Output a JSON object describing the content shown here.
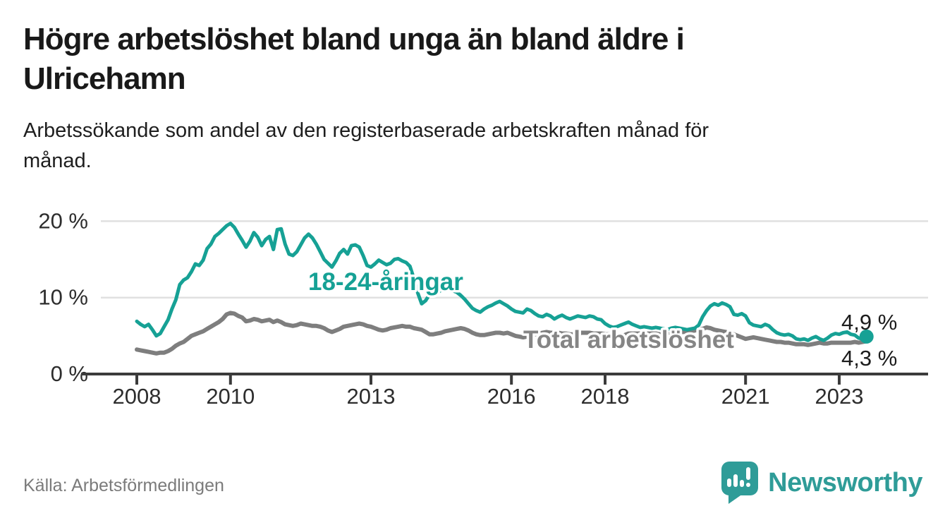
{
  "header": {
    "title": "Högre arbetslöshet bland unga än bland äldre i\nUlricehamn",
    "subtitle": "Arbetssökande som andel av den registerbaserade arbetskraften månad för\nmånad."
  },
  "footer": {
    "source": "Källa: Arbetsförmedlingen",
    "brand": "Newsworthy",
    "logo_icon": "speech-bubble-bar-chart"
  },
  "colors": {
    "youth_line": "#16a195",
    "total_line": "#7e7e7e",
    "total_label": "#858585",
    "grid": "#e0e0e0",
    "axis": "#3b3b3b",
    "tick_text": "#2d2d2d",
    "value_text": "#1c1c1c",
    "logo": "#2f9c98"
  },
  "chart_data": {
    "type": "line",
    "unit": "%",
    "grid": true,
    "ylim": [
      0,
      21
    ],
    "y_ticks": [
      0,
      10,
      20
    ],
    "y_tick_labels": [
      "0 %",
      "10 %",
      "20 %"
    ],
    "x_tick_years": [
      2008,
      2010,
      2013,
      2016,
      2018,
      2021,
      2023
    ],
    "x_tick_labels": [
      "2008",
      "2010",
      "2013",
      "2016",
      "2018",
      "2021",
      "2023"
    ],
    "x_start_year": 2008,
    "x_start_month": 1,
    "x_end_year": 2023,
    "x_end_month": 8,
    "series": [
      {
        "name": "18-24-åringar",
        "end_label": "4,9 %",
        "end_value": 4.9,
        "values": [
          6.9,
          6.5,
          6.2,
          6.5,
          5.8,
          5.0,
          5.3,
          6.2,
          7.1,
          8.5,
          9.7,
          11.7,
          12.3,
          12.6,
          13.4,
          14.4,
          14.2,
          14.9,
          16.4,
          17.0,
          18.0,
          18.4,
          18.9,
          19.4,
          19.7,
          19.2,
          18.3,
          17.5,
          16.6,
          17.4,
          18.5,
          17.9,
          16.8,
          17.6,
          18.0,
          16.3,
          18.9,
          19.0,
          17.0,
          15.7,
          15.5,
          16.0,
          16.9,
          17.8,
          18.3,
          17.8,
          17.0,
          16.0,
          15.0,
          14.5,
          14.0,
          14.8,
          15.8,
          16.3,
          15.7,
          16.8,
          16.9,
          16.6,
          15.5,
          14.2,
          14.0,
          14.4,
          14.9,
          14.6,
          14.3,
          14.5,
          15.0,
          15.1,
          14.8,
          14.6,
          14.1,
          12.5,
          10.6,
          9.2,
          9.6,
          10.4,
          10.7,
          10.6,
          11.0,
          11.1,
          11.2,
          10.9,
          10.7,
          10.3,
          9.8,
          9.2,
          8.6,
          8.3,
          8.1,
          8.5,
          8.8,
          9.0,
          9.3,
          9.5,
          9.2,
          8.9,
          8.5,
          8.2,
          8.1,
          8.0,
          8.5,
          8.3,
          7.9,
          7.6,
          7.5,
          7.8,
          7.6,
          7.2,
          7.5,
          7.7,
          7.4,
          7.2,
          7.4,
          7.6,
          7.5,
          7.4,
          7.6,
          7.5,
          7.2,
          7.1,
          6.6,
          6.3,
          6.1,
          6.2,
          6.4,
          6.6,
          6.8,
          6.5,
          6.3,
          6.1,
          6.2,
          6.1,
          6.0,
          6.1,
          6.0,
          5.9,
          5.8,
          6.0,
          6.1,
          6.0,
          5.9,
          5.8,
          5.9,
          6.0,
          6.4,
          7.5,
          8.3,
          8.9,
          9.2,
          9.0,
          9.3,
          9.1,
          8.8,
          7.8,
          7.7,
          7.9,
          7.6,
          6.7,
          6.4,
          6.3,
          6.2,
          6.5,
          6.3,
          5.8,
          5.4,
          5.2,
          5.1,
          5.2,
          5.0,
          4.6,
          4.5,
          4.6,
          4.4,
          4.7,
          4.9,
          4.6,
          4.4,
          4.7,
          5.1,
          5.3,
          5.2,
          5.4,
          5.5,
          5.2,
          5.1,
          4.7,
          4.6,
          4.9
        ]
      },
      {
        "name": "Total arbetslöshet",
        "end_label": "4,3 %",
        "end_value": 4.3,
        "values": [
          3.2,
          3.1,
          3.0,
          2.9,
          2.8,
          2.7,
          2.8,
          2.8,
          3.0,
          3.3,
          3.7,
          4.0,
          4.2,
          4.6,
          5.0,
          5.2,
          5.4,
          5.6,
          5.9,
          6.2,
          6.5,
          6.8,
          7.2,
          7.8,
          8.0,
          7.9,
          7.6,
          7.4,
          6.9,
          7.0,
          7.2,
          7.1,
          6.9,
          7.0,
          7.1,
          6.8,
          7.0,
          6.8,
          6.5,
          6.4,
          6.3,
          6.4,
          6.6,
          6.5,
          6.4,
          6.3,
          6.3,
          6.2,
          6.0,
          5.7,
          5.5,
          5.7,
          5.9,
          6.2,
          6.3,
          6.4,
          6.5,
          6.6,
          6.5,
          6.3,
          6.2,
          6.0,
          5.8,
          5.7,
          5.8,
          6.0,
          6.1,
          6.2,
          6.3,
          6.2,
          6.2,
          6.0,
          5.9,
          5.8,
          5.5,
          5.2,
          5.2,
          5.3,
          5.4,
          5.6,
          5.7,
          5.8,
          5.9,
          6.0,
          5.9,
          5.7,
          5.4,
          5.2,
          5.1,
          5.1,
          5.2,
          5.3,
          5.4,
          5.4,
          5.3,
          5.4,
          5.2,
          5.0,
          4.9,
          4.8,
          4.9,
          5.0,
          5.2,
          5.3,
          5.4,
          5.5,
          5.4,
          5.4,
          5.4,
          5.3,
          5.3,
          5.2,
          5.2,
          5.3,
          5.4,
          5.4,
          5.4,
          5.3,
          5.3,
          5.3,
          5.2,
          5.2,
          5.1,
          5.0,
          5.0,
          5.1,
          5.3,
          5.3,
          5.3,
          5.3,
          5.3,
          5.3,
          5.3,
          5.3,
          5.2,
          5.2,
          5.2,
          5.3,
          5.5,
          5.5,
          5.5,
          5.5,
          5.6,
          5.7,
          5.8,
          5.9,
          6.1,
          6.0,
          5.8,
          5.7,
          5.6,
          5.5,
          5.3,
          5.2,
          5.0,
          4.8,
          4.6,
          4.7,
          4.8,
          4.7,
          4.6,
          4.5,
          4.4,
          4.3,
          4.2,
          4.2,
          4.1,
          4.1,
          4.0,
          3.9,
          3.9,
          3.9,
          3.8,
          3.9,
          4.0,
          4.1,
          4.0,
          4.0,
          4.1,
          4.1,
          4.1,
          4.1,
          4.1,
          4.1,
          4.2,
          4.1,
          4.2,
          4.3
        ]
      }
    ]
  }
}
